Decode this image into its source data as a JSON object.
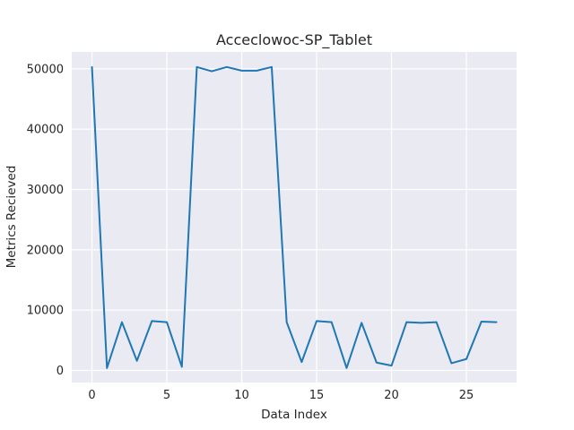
{
  "chart_data": {
    "type": "line",
    "title": "Acceclowoc-SP_Tablet",
    "xlabel": "Data Index",
    "ylabel": "Metrics Recieved",
    "xlim": [
      -1.35,
      28.35
    ],
    "ylim": [
      -2000,
      52800
    ],
    "xticks": [
      0,
      5,
      10,
      15,
      20,
      25
    ],
    "yticks": [
      0,
      10000,
      20000,
      30000,
      40000,
      50000
    ],
    "grid": true,
    "legend": "none",
    "colors": {
      "background": "#eaeaf2",
      "grid": "#ffffff",
      "line": "#1f77b4"
    },
    "series": [
      {
        "x": [
          0,
          1,
          2,
          3,
          4,
          5,
          6,
          7,
          8,
          9,
          10,
          11,
          12,
          13,
          14,
          15,
          16,
          17,
          18,
          19,
          20,
          21,
          22,
          23,
          24,
          25,
          26,
          27
        ],
        "values": [
          50300,
          400,
          8000,
          1600,
          8200,
          8000,
          600,
          50300,
          49600,
          50300,
          49700,
          49700,
          50300,
          8000,
          1400,
          8200,
          8000,
          400,
          7900,
          1300,
          800,
          8000,
          7900,
          8000,
          1200,
          1900,
          8100,
          8000
        ]
      }
    ]
  }
}
